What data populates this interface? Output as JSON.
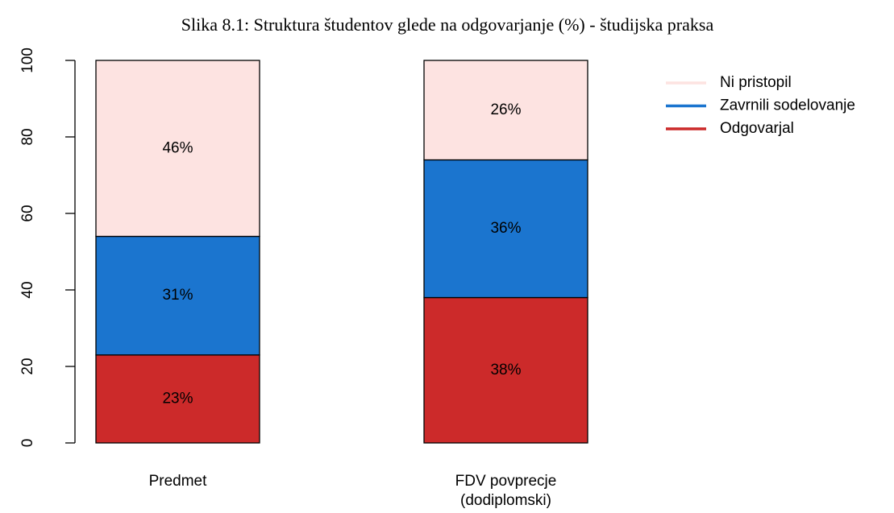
{
  "chart_data": {
    "type": "stacked_bar",
    "title": "Slika  8.1: Struktura študentov glede na odgovarjanje (%) - študijska praksa",
    "categories": [
      "Predmet",
      "FDV povprecje\n(dodiplomski)"
    ],
    "series": [
      {
        "name": "Odgovarjal",
        "color": "#cc2a2a",
        "values": [
          23,
          38
        ],
        "value_labels": [
          "23%",
          "38%"
        ]
      },
      {
        "name": "Zavrnili sodelovanje",
        "color": "#1b75cf",
        "values": [
          31,
          36
        ],
        "value_labels": [
          "31%",
          "36%"
        ]
      },
      {
        "name": "Ni pristopil",
        "color": "#fde3e1",
        "values": [
          46,
          26
        ],
        "value_labels": [
          "46%",
          "26%"
        ]
      }
    ],
    "ylim": [
      0,
      100
    ],
    "yticks": [
      0,
      20,
      40,
      60,
      80,
      100
    ],
    "legend": "top-right"
  }
}
